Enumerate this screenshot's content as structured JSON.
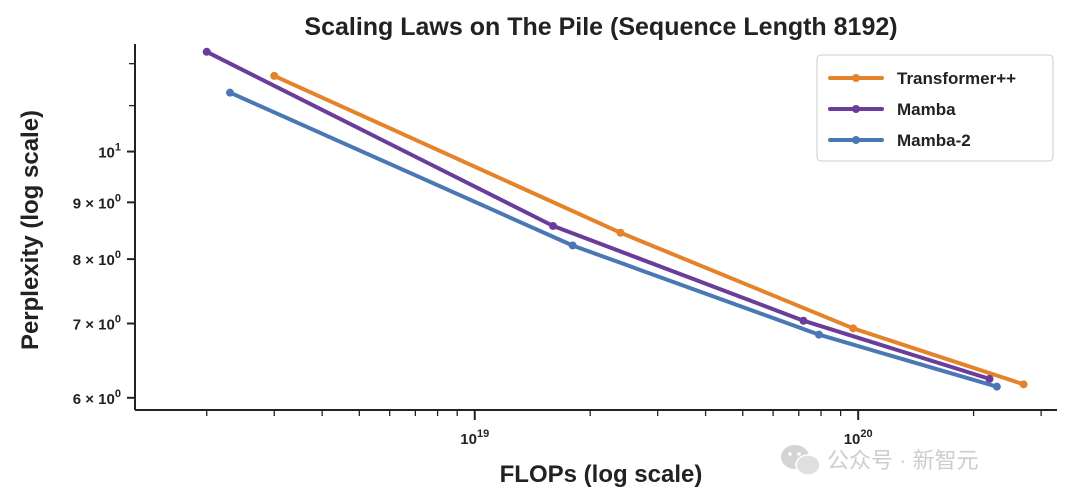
{
  "chart_data": {
    "type": "line",
    "title": "Scaling Laws on The Pile (Sequence Length 8192)",
    "xlabel": "FLOPs (log scale)",
    "ylabel": "Perplexity (log scale)",
    "x_scale": "log",
    "y_scale": "log",
    "xlim": [
      1.3e+18,
      3.3e+20
    ],
    "ylim": [
      5.85,
      12.5
    ],
    "x_ticks": [
      {
        "value": 1e+19,
        "base": "10",
        "exp": "19"
      },
      {
        "value": 1e+20,
        "base": "10",
        "exp": "20"
      }
    ],
    "y_ticks": [
      {
        "value": 6,
        "base": "6 × 10",
        "exp": "0"
      },
      {
        "value": 7,
        "base": "7 × 10",
        "exp": "0"
      },
      {
        "value": 8,
        "base": "8 × 10",
        "exp": "0"
      },
      {
        "value": 9,
        "base": "9 × 10",
        "exp": "0"
      },
      {
        "value": 10,
        "base": "10",
        "exp": "1"
      }
    ],
    "grid": false,
    "legend_position": "top-right",
    "series": [
      {
        "name": "Transformer++",
        "color": "#e5832a",
        "x": [
          3e+18,
          2.4e+19,
          9.7e+19,
          2.7e+20
        ],
        "y": [
          11.7,
          8.45,
          6.93,
          6.17
        ]
      },
      {
        "name": "Mamba",
        "color": "#6a3d9a",
        "x": [
          2e+18,
          1.6e+19,
          7.2e+19,
          2.2e+20
        ],
        "y": [
          12.3,
          8.57,
          7.04,
          6.24
        ]
      },
      {
        "name": "Mamba-2",
        "color": "#4a78b5",
        "x": [
          2.3e+18,
          1.8e+19,
          7.9e+19,
          2.3e+20
        ],
        "y": [
          11.3,
          8.23,
          6.84,
          6.14
        ]
      }
    ]
  },
  "watermark": {
    "text": "公众号 · 新智元",
    "icon": "wechat-icon"
  }
}
